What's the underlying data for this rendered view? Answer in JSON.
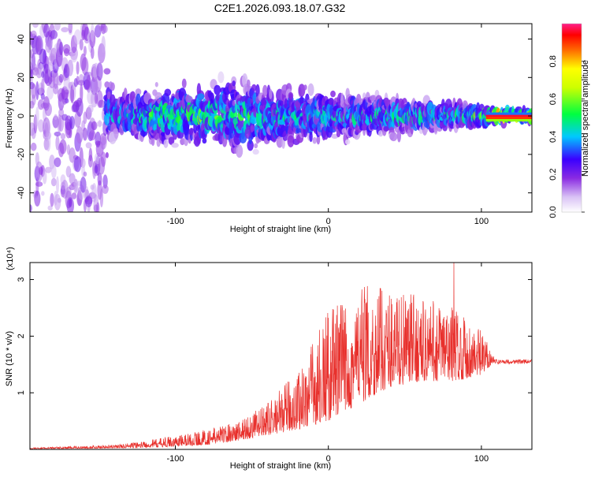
{
  "title": "C2E1.2026.093.18.07.G32",
  "chart_data": [
    {
      "type": "heatmap",
      "name": "spectrogram",
      "xlabel": "Height of straight line (km)",
      "ylabel": "Frequency (Hz)",
      "xlim": [
        -195,
        133
      ],
      "ylim": [
        -50,
        48
      ],
      "xticks": [
        -100,
        0,
        100
      ],
      "yticks": [
        -40,
        -20,
        0,
        20,
        40
      ],
      "colorbar": {
        "label": "Normalized spectral amplitude",
        "range": [
          0,
          1
        ],
        "ticks": [
          "0.0",
          "0.2",
          "0.4",
          "0.6",
          "0.8"
        ],
        "tick_values": [
          0,
          0.2,
          0.4,
          0.6,
          0.8
        ],
        "colors": [
          "#ffffff",
          "#c9a6f2",
          "#8a2be2",
          "#3a00ff",
          "#00ffff",
          "#00ff00",
          "#ffff00",
          "#ff0000",
          "#ff2a8a"
        ]
      },
      "band_envelope": {
        "x": [
          -195,
          -150,
          -140,
          -120,
          -100,
          -80,
          -60,
          -40,
          -20,
          0,
          20,
          40,
          60,
          80,
          100,
          110,
          133
        ],
        "half_width_hz": [
          48,
          48,
          10,
          12,
          14,
          14,
          18,
          14,
          14,
          12,
          10,
          9,
          7,
          6,
          4,
          3,
          2
        ],
        "peak_amplitude": [
          0.3,
          0.3,
          0.4,
          0.5,
          0.55,
          0.55,
          0.5,
          0.5,
          0.45,
          0.45,
          0.45,
          0.5,
          0.5,
          0.5,
          0.55,
          0.9,
          0.9
        ]
      }
    },
    {
      "type": "line",
      "name": "snr",
      "xlabel": "Height of straight line (km)",
      "ylabel": "SNR (10 * v/v)",
      "y_multiplier": "(x10⁴)",
      "xlim": [
        -195,
        133
      ],
      "ylim": [
        0,
        3.3
      ],
      "xticks": [
        -100,
        0,
        100
      ],
      "yticks": [
        1,
        2,
        3
      ],
      "color": "#e8302c",
      "envelope": {
        "x": [
          -195,
          -140,
          -120,
          -100,
          -80,
          -60,
          -40,
          -20,
          0,
          20,
          40,
          60,
          80,
          100,
          108,
          133
        ],
        "baseline": [
          0.01,
          0.02,
          0.03,
          0.05,
          0.08,
          0.15,
          0.25,
          0.35,
          0.5,
          0.8,
          1.1,
          1.2,
          1.2,
          1.3,
          1.55,
          1.55
        ],
        "peak": [
          0.03,
          0.08,
          0.15,
          0.25,
          0.35,
          0.5,
          0.8,
          1.4,
          2.5,
          2.9,
          2.85,
          2.7,
          2.6,
          2.1,
          1.7,
          1.62
        ]
      },
      "spike": {
        "x": 82,
        "y": 3.3
      }
    }
  ]
}
